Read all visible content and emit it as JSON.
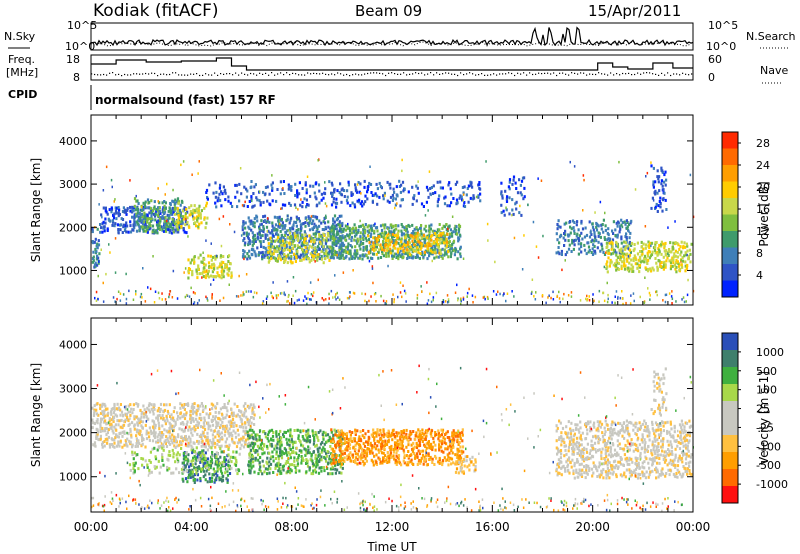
{
  "header": {
    "station": "Kodiak (fitACF)",
    "beam": "Beam 09",
    "date": "15/Apr/2011"
  },
  "top_panels": {
    "nsky_label": "N.Sky",
    "nsearch_label": "N.Search",
    "noise_ticks_left": [
      "10^5",
      "10^0"
    ],
    "noise_ticks_right": [
      "10^5",
      "10^0"
    ],
    "freq_label": "Freq.",
    "freq_unit": "[MHz]",
    "freq_ticks": [
      "18",
      "8"
    ],
    "nave_label": "Nave",
    "nave_ticks": [
      "60",
      "0"
    ],
    "cpid_label": "CPID",
    "cpid_text": "normalsound (fast) 157 RF"
  },
  "colors": {
    "power": [
      "#0022ff",
      "#2f54c6",
      "#3f7fb8",
      "#3f9b6c",
      "#7fbf3f",
      "#c8d84a",
      "#ffcc00",
      "#ff9e00",
      "#ff6a00",
      "#ff2a00"
    ],
    "velocity": [
      "#ff1010",
      "#ff6a00",
      "#ff9e00",
      "#ffc040",
      "#c8c8c0",
      "#c8c8c0",
      "#a8d84a",
      "#3fb03f",
      "#3f7f6c",
      "#2a4fb8"
    ]
  },
  "chart_data": [
    {
      "type": "heatmap",
      "title": "Power",
      "ylabel": "Slant Range [km]",
      "yticks": [
        "4000",
        "3000",
        "2000",
        "1000"
      ],
      "ylim": [
        200,
        4600
      ],
      "xlim": [
        0,
        24
      ],
      "colorbar_label": "Power [dB]",
      "colorbar_ticks": [
        "28",
        "24",
        "20",
        "16",
        "12",
        "8",
        "4"
      ],
      "colorbar_range": [
        0,
        30
      ],
      "regions": [
        {
          "t0": 0.0,
          "t1": 0.3,
          "r0": 1100,
          "r1": 2000,
          "level": 2,
          "density": 0.55
        },
        {
          "t0": 0.3,
          "t1": 3.8,
          "r0": 1900,
          "r1": 2500,
          "level": 1,
          "density": 0.55
        },
        {
          "t0": 1.7,
          "t1": 3.6,
          "r0": 1900,
          "r1": 2700,
          "level": 3,
          "density": 0.5
        },
        {
          "t0": 3.3,
          "t1": 4.6,
          "r0": 2000,
          "r1": 2600,
          "level": 5,
          "density": 0.4
        },
        {
          "t0": 3.8,
          "t1": 5.6,
          "r0": 850,
          "r1": 1400,
          "level": 5,
          "density": 0.45
        },
        {
          "t0": 6.0,
          "t1": 10.0,
          "r0": 1300,
          "r1": 2300,
          "level": 2,
          "density": 0.55
        },
        {
          "t0": 7.0,
          "t1": 9.5,
          "r0": 1200,
          "r1": 1900,
          "level": 5,
          "density": 0.35
        },
        {
          "t0": 9.5,
          "t1": 14.7,
          "r0": 1300,
          "r1": 2100,
          "level": 3,
          "density": 0.6
        },
        {
          "t0": 11.0,
          "t1": 14.2,
          "r0": 1400,
          "r1": 1900,
          "level": 6,
          "density": 0.4
        },
        {
          "t0": 4.5,
          "t1": 15.5,
          "r0": 2500,
          "r1": 3100,
          "level": 1,
          "density": 0.2
        },
        {
          "t0": 16.3,
          "t1": 17.3,
          "r0": 2300,
          "r1": 3200,
          "level": 1,
          "density": 0.25
        },
        {
          "t0": 18.5,
          "t1": 21.5,
          "r0": 1400,
          "r1": 2200,
          "level": 2,
          "density": 0.35
        },
        {
          "t0": 20.5,
          "t1": 23.9,
          "r0": 1000,
          "r1": 1700,
          "level": 5,
          "density": 0.5
        },
        {
          "t0": 22.3,
          "t1": 22.9,
          "r0": 2400,
          "r1": 3500,
          "level": 1,
          "density": 0.35
        }
      ]
    },
    {
      "type": "heatmap",
      "title": "Velocity",
      "ylabel": "Slant Range [km]",
      "yticks": [
        "4000",
        "3000",
        "2000",
        "1000"
      ],
      "ylim": [
        200,
        4600
      ],
      "xlim": [
        0,
        24
      ],
      "xlabel": "Time UT",
      "xticks": [
        "00:00",
        "04:00",
        "08:00",
        "12:00",
        "16:00",
        "20:00",
        "00:00"
      ],
      "colorbar_label": "Velocity [m s-1]",
      "colorbar_ticks": [
        "1000",
        "500",
        "100",
        "25",
        "-25",
        "-100",
        "-500",
        "-1000"
      ],
      "regions": [
        {
          "t0": 0.0,
          "t1": 6.5,
          "r0": 1700,
          "r1": 2700,
          "level": 4,
          "density": 0.5
        },
        {
          "t0": 3.6,
          "t1": 5.5,
          "r0": 900,
          "r1": 1600,
          "level": 8,
          "density": 0.5
        },
        {
          "t0": 1.5,
          "t1": 6.0,
          "r0": 1100,
          "r1": 1700,
          "level": 6,
          "density": 0.25
        },
        {
          "t0": 6.2,
          "t1": 10.0,
          "r0": 1100,
          "r1": 2100,
          "level": 7,
          "density": 0.5
        },
        {
          "t0": 9.5,
          "t1": 14.8,
          "r0": 1300,
          "r1": 2100,
          "level": 2,
          "density": 0.6
        },
        {
          "t0": 14.5,
          "t1": 15.3,
          "r0": 1100,
          "r1": 1500,
          "level": 3,
          "density": 0.5
        },
        {
          "t0": 18.5,
          "t1": 23.9,
          "r0": 1000,
          "r1": 2300,
          "level": 4,
          "density": 0.45
        },
        {
          "t0": 22.3,
          "t1": 22.9,
          "r0": 2400,
          "r1": 3500,
          "level": 4,
          "density": 0.3
        }
      ]
    }
  ]
}
